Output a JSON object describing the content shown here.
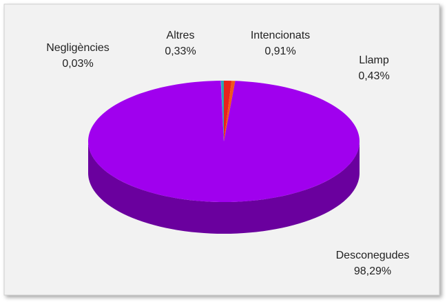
{
  "chart_data": {
    "type": "pie3d",
    "categories": [
      "Intencionats",
      "Llamp",
      "Desconegudes",
      "Negligències",
      "Altres"
    ],
    "values": [
      0.91,
      0.43,
      98.29,
      0.03,
      0.33
    ],
    "value_labels": [
      "0,91%",
      "0,43%",
      "98,29%",
      "0,03%",
      "0,33%"
    ],
    "colors": [
      "#e8231c",
      "#f0571c",
      "#a000ee",
      "#5fb0d8",
      "#2aa6b4"
    ],
    "side_colors": [
      "#9a130e",
      "#a5360e",
      "#6a009e",
      "#3c7a98",
      "#1a6f78"
    ]
  }
}
